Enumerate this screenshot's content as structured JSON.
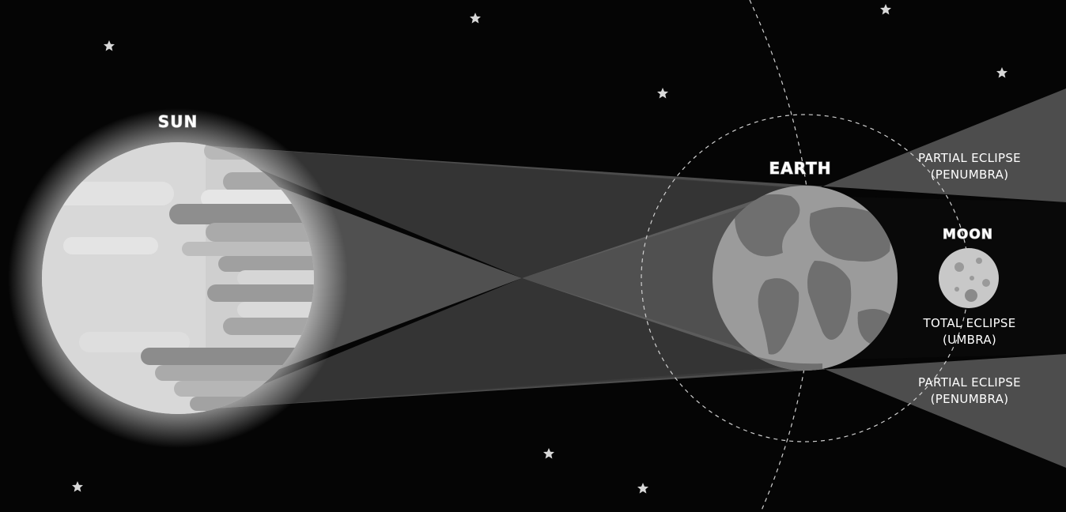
{
  "diagram": {
    "bodies": {
      "sun": {
        "label": "SUN"
      },
      "earth": {
        "label": "EARTH"
      },
      "moon": {
        "label": "MOON"
      }
    },
    "zones": {
      "penumbra_top": {
        "line1": "PARTIAL ECLIPSE",
        "line2": "(PENUMBRA)"
      },
      "umbra": {
        "line1": "TOTAL ECLIPSE",
        "line2": "(UMBRA)"
      },
      "penumbra_bottom": {
        "line1": "PARTIAL ECLIPSE",
        "line2": "(PENUMBRA)"
      }
    },
    "colors": {
      "space": "#050505",
      "sun_base": "#cfcfcf",
      "earth_ocean": "#9b9b9b",
      "earth_land": "#6f6f6f",
      "moon": "#c8c8c8",
      "penumbra": "#5a5a5a",
      "umbra": "#2a2a2a",
      "star": "#d8d8d8",
      "orbit": "#cfcfcf"
    }
  }
}
